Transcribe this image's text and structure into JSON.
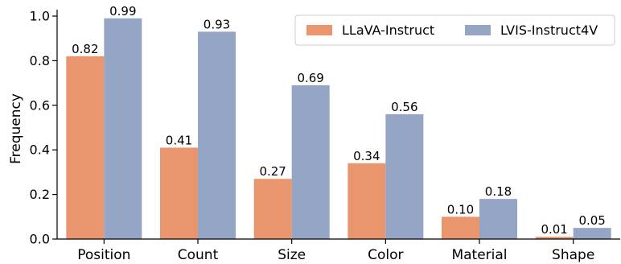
{
  "chart_data": {
    "type": "bar",
    "categories": [
      "Position",
      "Count",
      "Size",
      "Color",
      "Material",
      "Shape"
    ],
    "series": [
      {
        "name": "LLaVA-Instruct",
        "color": "#E9956E",
        "values": [
          0.82,
          0.41,
          0.27,
          0.34,
          0.1,
          0.01
        ],
        "labels": [
          "0.82",
          "0.41",
          "0.27",
          "0.34",
          "0.10",
          "0.01"
        ]
      },
      {
        "name": "LVIS-Instruct4V",
        "color": "#95A5C6",
        "values": [
          0.99,
          0.93,
          0.69,
          0.56,
          0.18,
          0.05
        ],
        "labels": [
          "0.99",
          "0.93",
          "0.69",
          "0.56",
          "0.18",
          "0.05"
        ]
      }
    ],
    "title": "",
    "xlabel": "",
    "ylabel": "Frequency",
    "ylim": [
      0,
      1.0
    ],
    "yticks": [
      "0.0",
      "0.2",
      "0.4",
      "0.6",
      "0.8",
      "1.0"
    ],
    "grid": false,
    "legend": "top-right"
  }
}
